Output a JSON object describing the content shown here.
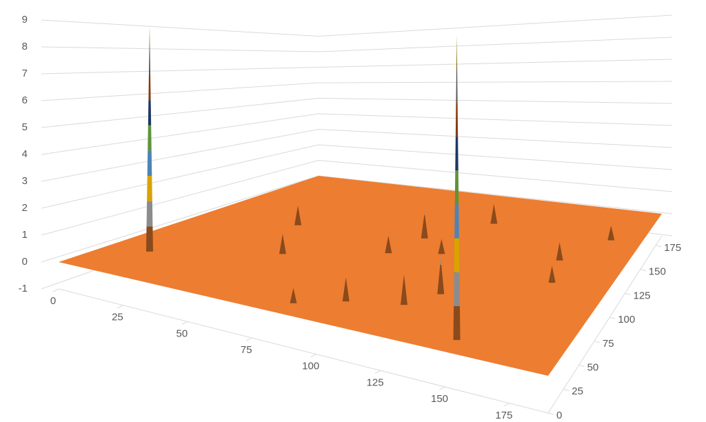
{
  "chart_data": {
    "type": "surface",
    "x": [
      15,
      150,
      40,
      55,
      90,
      95,
      110,
      115,
      120,
      128,
      100,
      160,
      165,
      175,
      85
    ],
    "y": [
      39,
      15,
      110,
      70,
      95,
      120,
      105,
      150,
      40,
      60,
      30,
      120,
      95,
      150,
      15
    ],
    "values": [
      8.9,
      9,
      0.9,
      0.8,
      0.7,
      1.1,
      0.6,
      0.9,
      1.0,
      1.2,
      0.8,
      0.7,
      0.6,
      0.6,
      0.5
    ],
    "xlim": [
      0,
      190
    ],
    "xticks": [
      0,
      25,
      50,
      75,
      100,
      125,
      150,
      175
    ],
    "ylim": [
      0,
      185
    ],
    "yticks": [
      0,
      25,
      50,
      75,
      100,
      125,
      150,
      175
    ],
    "zlim": [
      -1,
      9
    ],
    "zticks": [
      -1,
      0,
      1,
      2,
      3,
      4,
      5,
      6,
      7,
      8,
      9
    ],
    "color": "#ed7d31",
    "band_colors": [
      "#8a4a1c",
      "#8c8c8c",
      "#d9a300",
      "#4d84b5",
      "#5f933c",
      "#1f3864",
      "#843c0c",
      "#545454",
      "#7f6000"
    ],
    "grid": true
  }
}
